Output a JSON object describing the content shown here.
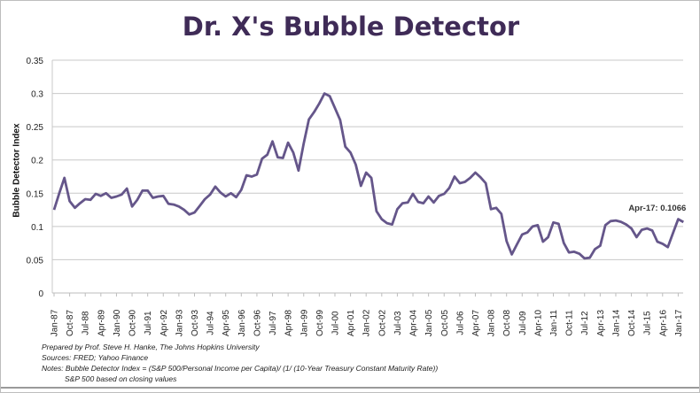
{
  "chart_data": {
    "type": "line",
    "title": "Dr. X's Bubble Detector",
    "xlabel": "",
    "ylabel": "Bubble Detector Index",
    "ylim": [
      0,
      0.35
    ],
    "yticks": [
      "0",
      "0.05",
      "0.1",
      "0.15",
      "0.2",
      "0.25",
      "0.3",
      "0.35"
    ],
    "grid": true,
    "line_color": "#65568a",
    "xtick_labels": [
      "Jan-87",
      "Oct-87",
      "Jul-88",
      "Apr-89",
      "Jan-90",
      "Oct-90",
      "Jul-91",
      "Apr-92",
      "Jan-93",
      "Oct-93",
      "Jul-94",
      "Apr-95",
      "Jan-96",
      "Oct-96",
      "Jul-97",
      "Apr-98",
      "Jan-99",
      "Oct-99",
      "Jul-00",
      "Apr-01",
      "Jan-02",
      "Oct-02",
      "Jul-03",
      "Apr-04",
      "Jan-05",
      "Oct-05",
      "Jul-06",
      "Apr-07",
      "Jan-08",
      "Oct-08",
      "Jul-09",
      "Apr-10",
      "Jan-11",
      "Oct-11",
      "Jul-12",
      "Apr-13",
      "Jan-14",
      "Oct-14",
      "Jul-15",
      "Apr-16",
      "Jan-17"
    ],
    "x": [
      "Jan-87",
      "Apr-87",
      "Jul-87",
      "Oct-87",
      "Jan-88",
      "Apr-88",
      "Jul-88",
      "Oct-88",
      "Jan-89",
      "Apr-89",
      "Jul-89",
      "Oct-89",
      "Jan-90",
      "Apr-90",
      "Jul-90",
      "Oct-90",
      "Jan-91",
      "Apr-91",
      "Jul-91",
      "Oct-91",
      "Jan-92",
      "Apr-92",
      "Jul-92",
      "Oct-92",
      "Jan-93",
      "Apr-93",
      "Jul-93",
      "Oct-93",
      "Jan-94",
      "Apr-94",
      "Jul-94",
      "Oct-94",
      "Jan-95",
      "Apr-95",
      "Jul-95",
      "Oct-95",
      "Jan-96",
      "Apr-96",
      "Jul-96",
      "Oct-96",
      "Jan-97",
      "Apr-97",
      "Jul-97",
      "Oct-97",
      "Jan-98",
      "Apr-98",
      "Jul-98",
      "Oct-98",
      "Jan-99",
      "Apr-99",
      "Jul-99",
      "Oct-99",
      "Jan-00",
      "Apr-00",
      "Jul-00",
      "Oct-00",
      "Jan-01",
      "Apr-01",
      "Jul-01",
      "Oct-01",
      "Jan-02",
      "Apr-02",
      "Jul-02",
      "Oct-02",
      "Jan-03",
      "Apr-03",
      "Jul-03",
      "Oct-03",
      "Jan-04",
      "Apr-04",
      "Jul-04",
      "Oct-04",
      "Jan-05",
      "Apr-05",
      "Jul-05",
      "Oct-05",
      "Jan-06",
      "Apr-06",
      "Jul-06",
      "Oct-06",
      "Jan-07",
      "Apr-07",
      "Jul-07",
      "Oct-07",
      "Jan-08",
      "Apr-08",
      "Jul-08",
      "Oct-08",
      "Jan-09",
      "Apr-09",
      "Jul-09",
      "Oct-09",
      "Jan-10",
      "Apr-10",
      "Jul-10",
      "Oct-10",
      "Jan-11",
      "Apr-11",
      "Jul-11",
      "Oct-11",
      "Jan-12",
      "Apr-12",
      "Jul-12",
      "Oct-12",
      "Jan-13",
      "Apr-13",
      "Jul-13",
      "Oct-13",
      "Jan-14",
      "Apr-14",
      "Jul-14",
      "Oct-14",
      "Jan-15",
      "Apr-15",
      "Jul-15",
      "Oct-15",
      "Jan-16",
      "Apr-16",
      "Jul-16",
      "Oct-16",
      "Jan-17",
      "Apr-17"
    ],
    "values": [
      0.125,
      0.15,
      0.173,
      0.138,
      0.128,
      0.135,
      0.141,
      0.14,
      0.149,
      0.146,
      0.15,
      0.143,
      0.145,
      0.148,
      0.157,
      0.13,
      0.14,
      0.154,
      0.154,
      0.143,
      0.145,
      0.146,
      0.134,
      0.133,
      0.13,
      0.125,
      0.118,
      0.121,
      0.131,
      0.141,
      0.148,
      0.16,
      0.151,
      0.145,
      0.15,
      0.144,
      0.155,
      0.177,
      0.175,
      0.178,
      0.202,
      0.208,
      0.228,
      0.204,
      0.203,
      0.226,
      0.211,
      0.184,
      0.225,
      0.261,
      0.272,
      0.285,
      0.3,
      0.296,
      0.278,
      0.26,
      0.22,
      0.211,
      0.193,
      0.161,
      0.181,
      0.173,
      0.123,
      0.111,
      0.105,
      0.103,
      0.126,
      0.135,
      0.136,
      0.149,
      0.137,
      0.135,
      0.145,
      0.136,
      0.146,
      0.149,
      0.158,
      0.175,
      0.165,
      0.167,
      0.173,
      0.181,
      0.174,
      0.165,
      0.126,
      0.128,
      0.119,
      0.078,
      0.058,
      0.073,
      0.088,
      0.091,
      0.1,
      0.102,
      0.077,
      0.084,
      0.106,
      0.104,
      0.075,
      0.061,
      0.062,
      0.059,
      0.052,
      0.053,
      0.066,
      0.071,
      0.102,
      0.108,
      0.109,
      0.107,
      0.103,
      0.097,
      0.084,
      0.095,
      0.097,
      0.094,
      0.077,
      0.074,
      0.069,
      0.09,
      0.111,
      0.1066
    ],
    "annotation": "Apr-17: 0.1066"
  },
  "footer": {
    "prepared_by": "Prepared by Prof. Steve H. Hanke, The Johns Hopkins University",
    "sources": "Sources: FRED; Yahoo Finance",
    "notes": "Notes: Bubble Detector Index = (S&P 500/Personal Income per Capita)/ (1/ (10-Year Treasury Constant Maturity Rate))",
    "notes2": "S&P 500 based on closing values"
  }
}
